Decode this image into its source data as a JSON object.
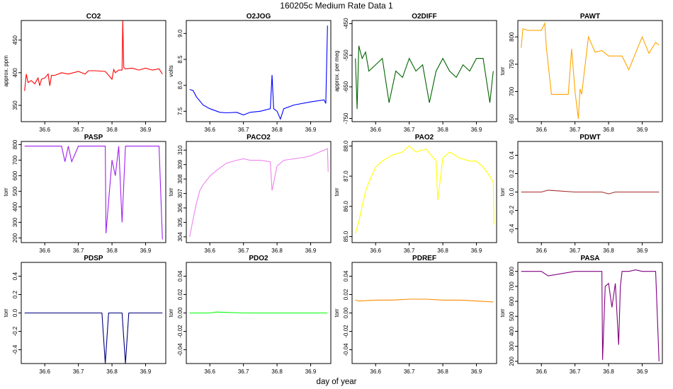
{
  "figure": {
    "title": "160205c   Medium Rate Data 1",
    "xlabel": "day of year"
  },
  "chart_data": [
    {
      "type": "line",
      "title": "CO2",
      "ylabel": "approx. ppm",
      "color": "#ff0000",
      "xlim": [
        36.53,
        36.96
      ],
      "ylim": [
        325,
        480
      ],
      "xticks": [
        36.6,
        36.7,
        36.8,
        36.9
      ],
      "xtick_labels": [
        "36.6",
        "36.7",
        "36.8",
        "36.9"
      ],
      "yticks": [
        350,
        400,
        450
      ],
      "ytick_labels": [
        "350",
        "400",
        "450"
      ],
      "series": [
        {
          "x": [
            36.54,
            36.545,
            36.55,
            36.56,
            36.57,
            36.58,
            36.585,
            36.59,
            36.6,
            36.61,
            36.615,
            36.62,
            36.63,
            36.65,
            36.67,
            36.7,
            36.72,
            36.73,
            36.75,
            36.78,
            36.8,
            36.805,
            36.81,
            36.82,
            36.83,
            36.832,
            36.835,
            36.84,
            36.86,
            36.88,
            36.9,
            36.92,
            36.94,
            36.95
          ],
          "y": [
            372,
            398,
            385,
            388,
            383,
            392,
            380,
            390,
            392,
            398,
            380,
            396,
            396,
            400,
            398,
            402,
            398,
            403,
            403,
            402,
            390,
            405,
            400,
            404,
            404,
            480,
            408,
            406,
            407,
            404,
            407,
            404,
            406,
            398
          ]
        }
      ]
    },
    {
      "type": "line",
      "title": "O2JOG",
      "ylabel": "volts",
      "color": "#0000ff",
      "xlim": [
        36.53,
        36.96
      ],
      "ylim": [
        7.3,
        9.25
      ],
      "xticks": [
        36.6,
        36.7,
        36.8,
        36.9
      ],
      "xtick_labels": [
        "36.6",
        "36.7",
        "36.8",
        "36.9"
      ],
      "yticks": [
        7.5,
        8.0,
        8.5,
        9.0
      ],
      "ytick_labels": [
        "7.5",
        "8.0",
        "8.5",
        "9.0"
      ],
      "series": [
        {
          "x": [
            36.54,
            36.55,
            36.56,
            36.58,
            36.6,
            36.63,
            36.65,
            36.68,
            36.7,
            36.72,
            36.75,
            36.78,
            36.785,
            36.79,
            36.8,
            36.81,
            36.82,
            36.85,
            36.9,
            36.94,
            36.945,
            36.95
          ],
          "y": [
            7.92,
            7.9,
            7.78,
            7.62,
            7.55,
            7.48,
            7.47,
            7.48,
            7.43,
            7.48,
            7.5,
            7.55,
            8.2,
            7.55,
            7.5,
            7.35,
            7.55,
            7.62,
            7.68,
            7.72,
            7.65,
            9.15
          ]
        }
      ]
    },
    {
      "type": "line",
      "title": "O2DIFF",
      "ylabel": "approx. per meg",
      "color": "#006400",
      "xlim": [
        36.53,
        36.96
      ],
      "ylim": [
        -760,
        -440
      ],
      "xticks": [
        36.6,
        36.7,
        36.8,
        36.9
      ],
      "xtick_labels": [
        "36.6",
        "36.7",
        "36.8",
        "36.9"
      ],
      "yticks": [
        -750,
        -650,
        -550,
        -450
      ],
      "ytick_labels": [
        "-750",
        "-650",
        "-550",
        "-450"
      ],
      "series": [
        {
          "x": [
            36.54,
            36.545,
            36.55,
            36.56,
            36.57,
            36.58,
            36.6,
            36.62,
            36.64,
            36.66,
            36.68,
            36.7,
            36.72,
            36.74,
            36.76,
            36.78,
            36.8,
            36.82,
            36.84,
            36.86,
            36.88,
            36.9,
            36.92,
            36.94,
            36.95
          ],
          "y": [
            -560,
            -720,
            -520,
            -560,
            -540,
            -600,
            -580,
            -560,
            -700,
            -600,
            -620,
            -560,
            -600,
            -580,
            -700,
            -600,
            -560,
            -600,
            -620,
            -580,
            -600,
            -560,
            -560,
            -700,
            -600
          ]
        }
      ]
    },
    {
      "type": "line",
      "title": "PAWT",
      "ylabel": "torr",
      "color": "#ffa500",
      "xlim": [
        36.53,
        36.96
      ],
      "ylim": [
        645,
        830
      ],
      "xticks": [
        36.6,
        36.7,
        36.8,
        36.9
      ],
      "xtick_labels": [
        "36.6",
        "36.7",
        "36.8",
        "36.9"
      ],
      "yticks": [
        650,
        700,
        750,
        800
      ],
      "ytick_labels": [
        "650",
        "700",
        "750",
        "800"
      ],
      "series": [
        {
          "x": [
            36.54,
            36.545,
            36.56,
            36.6,
            36.61,
            36.615,
            36.63,
            36.66,
            36.68,
            36.69,
            36.7,
            36.71,
            36.715,
            36.72,
            36.74,
            36.76,
            36.78,
            36.8,
            36.84,
            36.86,
            36.88,
            36.9,
            36.92,
            36.94,
            36.95
          ],
          "y": [
            780,
            815,
            812,
            812,
            825,
            780,
            695,
            695,
            695,
            778,
            700,
            650,
            705,
            695,
            800,
            772,
            775,
            765,
            765,
            740,
            770,
            800,
            770,
            790,
            785
          ]
        }
      ]
    },
    {
      "type": "line",
      "title": "PASP",
      "ylabel": "torr",
      "color": "#a020f0",
      "xlim": [
        36.53,
        36.96
      ],
      "ylim": [
        170,
        820
      ],
      "xticks": [
        36.6,
        36.7,
        36.8,
        36.9
      ],
      "xtick_labels": [
        "36.6",
        "36.7",
        "36.8",
        "36.9"
      ],
      "yticks": [
        200,
        300,
        400,
        500,
        600,
        700,
        800
      ],
      "ytick_labels": [
        "200",
        "300",
        "400",
        "500",
        "600",
        "700",
        "800"
      ],
      "series": [
        {
          "x": [
            36.54,
            36.6,
            36.65,
            36.66,
            36.67,
            36.68,
            36.7,
            36.72,
            36.74,
            36.76,
            36.78,
            36.782,
            36.8,
            36.81,
            36.82,
            36.83,
            36.84,
            36.86,
            36.9,
            36.94,
            36.95
          ],
          "y": [
            790,
            790,
            790,
            690,
            790,
            690,
            790,
            790,
            790,
            790,
            790,
            230,
            700,
            600,
            790,
            300,
            790,
            790,
            790,
            790,
            190
          ]
        }
      ]
    },
    {
      "type": "line",
      "title": "PACO2",
      "ylabel": "torr",
      "color": "#ee82ee",
      "xlim": [
        36.53,
        36.96
      ],
      "ylim": [
        303.6,
        310.6
      ],
      "xticks": [
        36.6,
        36.7,
        36.8,
        36.9
      ],
      "xtick_labels": [
        "36.6",
        "36.7",
        "36.8",
        "36.9"
      ],
      "yticks": [
        304,
        305,
        306,
        307,
        308,
        309,
        310
      ],
      "ytick_labels": [
        "304",
        "305",
        "306",
        "307",
        "308",
        "309",
        "310"
      ],
      "series": [
        {
          "x": [
            36.54,
            36.55,
            36.56,
            36.57,
            36.58,
            36.6,
            36.62,
            36.65,
            36.68,
            36.7,
            36.72,
            36.75,
            36.78,
            36.785,
            36.8,
            36.82,
            36.85,
            36.88,
            36.9,
            36.92,
            36.95,
            36.952
          ],
          "y": [
            304,
            305.2,
            306.3,
            307.2,
            307.6,
            308.2,
            308.6,
            309.1,
            309.3,
            309.4,
            309.3,
            309.3,
            309.2,
            307.2,
            308.9,
            309.3,
            309.4,
            309.5,
            309.6,
            309.8,
            310.1,
            308.5
          ]
        }
      ]
    },
    {
      "type": "line",
      "title": "PAO2",
      "ylabel": "torr",
      "color": "#ffff00",
      "xlim": [
        36.53,
        36.96
      ],
      "ylim": [
        84.8,
        88.15
      ],
      "xticks": [
        36.6,
        36.7,
        36.8,
        36.9
      ],
      "xtick_labels": [
        "36.6",
        "36.7",
        "36.8",
        "36.9"
      ],
      "yticks": [
        85.0,
        86.0,
        87.0,
        88.0
      ],
      "ytick_labels": [
        "85.0",
        "86.0",
        "87.0",
        "88.0"
      ],
      "series": [
        {
          "x": [
            36.54,
            36.55,
            36.56,
            36.57,
            36.58,
            36.6,
            36.62,
            36.65,
            36.68,
            36.7,
            36.72,
            36.75,
            36.78,
            36.785,
            36.8,
            36.82,
            36.85,
            36.88,
            36.9,
            36.92,
            36.94,
            36.95,
            36.952
          ],
          "y": [
            85.1,
            85.5,
            86.0,
            86.5,
            86.8,
            87.3,
            87.5,
            87.7,
            87.8,
            88.0,
            87.8,
            87.9,
            87.5,
            86.2,
            87.6,
            87.8,
            87.6,
            87.5,
            87.5,
            87.3,
            87.0,
            86.8,
            85.4
          ]
        }
      ]
    },
    {
      "type": "line",
      "title": "PDWT",
      "ylabel": "torr",
      "color": "#a52a2a",
      "xlim": [
        36.53,
        36.96
      ],
      "ylim": [
        -0.55,
        0.55
      ],
      "xticks": [
        36.6,
        36.7,
        36.8,
        36.9
      ],
      "xtick_labels": [
        "36.6",
        "36.7",
        "36.8",
        "36.9"
      ],
      "yticks": [
        -0.4,
        -0.2,
        0.0,
        0.2,
        0.4
      ],
      "ytick_labels": [
        "-0.4",
        "-0.2",
        "0.0",
        "0.2",
        "0.4"
      ],
      "series": [
        {
          "x": [
            36.54,
            36.6,
            36.62,
            36.7,
            36.78,
            36.8,
            36.82,
            36.9,
            36.95
          ],
          "y": [
            0.0,
            0.0,
            0.02,
            0.0,
            0.0,
            -0.02,
            0.0,
            0.0,
            0.0
          ]
        }
      ]
    },
    {
      "type": "line",
      "title": "PDSP",
      "ylabel": "torr",
      "color": "#000080",
      "xlim": [
        36.53,
        36.96
      ],
      "ylim": [
        -0.55,
        0.55
      ],
      "xticks": [
        36.6,
        36.7,
        36.8,
        36.9
      ],
      "xtick_labels": [
        "36.6",
        "36.7",
        "36.8",
        "36.9"
      ],
      "yticks": [
        -0.4,
        -0.2,
        0.0,
        0.2,
        0.4
      ],
      "ytick_labels": [
        "-0.4",
        "-0.2",
        "0.0",
        "0.2",
        "0.4"
      ],
      "series": [
        {
          "x": [
            36.54,
            36.6,
            36.7,
            36.77,
            36.78,
            36.79,
            36.8,
            36.83,
            36.84,
            36.85,
            36.9,
            36.95
          ],
          "y": [
            0.0,
            0.0,
            0.0,
            0.0,
            -0.55,
            0.0,
            0.0,
            0.0,
            -0.55,
            0.0,
            0.0,
            0.0
          ]
        }
      ]
    },
    {
      "type": "line",
      "title": "PDO2",
      "ylabel": "torr",
      "color": "#00ff00",
      "xlim": [
        36.53,
        36.96
      ],
      "ylim": [
        -0.055,
        0.055
      ],
      "xticks": [
        36.6,
        36.7,
        36.8,
        36.9
      ],
      "xtick_labels": [
        "36.6",
        "36.7",
        "36.8",
        "36.9"
      ],
      "yticks": [
        -0.04,
        -0.02,
        0.0,
        0.02,
        0.04
      ],
      "ytick_labels": [
        "-0.04",
        "-0.02",
        "0.00",
        "0.02",
        "0.04"
      ],
      "series": [
        {
          "x": [
            36.54,
            36.6,
            36.62,
            36.7,
            36.8,
            36.9,
            36.95
          ],
          "y": [
            0.0,
            0.0,
            0.001,
            0.0,
            0.0,
            0.0,
            0.0
          ]
        }
      ]
    },
    {
      "type": "line",
      "title": "PDREF",
      "ylabel": "torr",
      "color": "#ff8c00",
      "xlim": [
        36.53,
        36.96
      ],
      "ylim": [
        -0.055,
        0.055
      ],
      "xticks": [
        36.6,
        36.7,
        36.8,
        36.9
      ],
      "xtick_labels": [
        "36.6",
        "36.7",
        "36.8",
        "36.9"
      ],
      "yticks": [
        -0.04,
        -0.02,
        0.0,
        0.02,
        0.04
      ],
      "ytick_labels": [
        "-0.04",
        "-0.02",
        "0.00",
        "0.02",
        "0.04"
      ],
      "series": [
        {
          "x": [
            36.54,
            36.55,
            36.6,
            36.65,
            36.7,
            36.75,
            36.8,
            36.85,
            36.9,
            36.95
          ],
          "y": [
            0.014,
            0.013,
            0.014,
            0.014,
            0.015,
            0.015,
            0.014,
            0.014,
            0.013,
            0.012
          ]
        }
      ]
    },
    {
      "type": "line",
      "title": "PASA",
      "ylabel": "torr",
      "color": "#800080",
      "xlim": [
        36.53,
        36.96
      ],
      "ylim": [
        185,
        860
      ],
      "xticks": [
        36.6,
        36.7,
        36.8,
        36.9
      ],
      "xtick_labels": [
        "36.6",
        "36.7",
        "36.8",
        "36.9"
      ],
      "yticks": [
        200,
        300,
        400,
        500,
        600,
        700,
        800
      ],
      "ytick_labels": [
        "200",
        "300",
        "400",
        "500",
        "600",
        "700",
        "800"
      ],
      "series": [
        {
          "x": [
            36.54,
            36.6,
            36.62,
            36.7,
            36.78,
            36.782,
            36.79,
            36.8,
            36.81,
            36.82,
            36.83,
            36.835,
            36.84,
            36.86,
            36.88,
            36.9,
            36.94,
            36.95
          ],
          "y": [
            800,
            800,
            770,
            800,
            800,
            210,
            700,
            720,
            560,
            720,
            310,
            700,
            800,
            800,
            810,
            800,
            800,
            200
          ]
        }
      ]
    }
  ]
}
